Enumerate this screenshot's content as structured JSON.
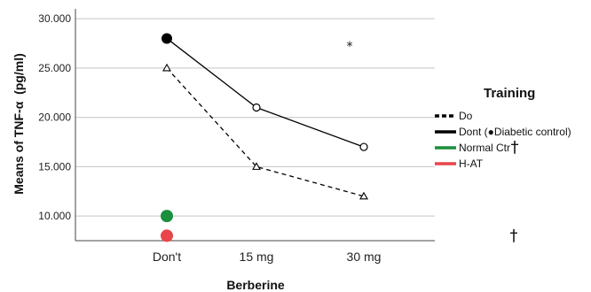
{
  "chart_data": {
    "type": "line",
    "xlabel": "Berberine",
    "ylabel": "Means of TNF-α  (pg/ml)",
    "categories": [
      "Don't",
      "15 mg",
      "30 mg"
    ],
    "ylim": [
      7500,
      31000
    ],
    "y_ticks": [
      "10.000",
      "15.000",
      "20.000",
      "25.000",
      "30.000"
    ],
    "y_tick_values": [
      10000,
      15000,
      20000,
      25000,
      30000
    ],
    "grid": "horizontal",
    "legend_position": "right",
    "legend_title": "Training",
    "series": [
      {
        "name": "Do",
        "values": [
          25000,
          15000,
          12000
        ],
        "color": "#000000",
        "style": "dashed",
        "marker": "triangle"
      },
      {
        "name": "Dont (●Diabetic control)",
        "values": [
          28000,
          21000,
          17000
        ],
        "color": "#000000",
        "style": "solid",
        "marker": "circle"
      },
      {
        "name": "Normal Ctr",
        "values": [
          10000,
          null,
          null
        ],
        "color": "#1a8f3c",
        "style": "point",
        "marker": "filled-circle"
      },
      {
        "name": "H-AT",
        "values": [
          8000,
          null,
          null
        ],
        "color": "#e8444a",
        "style": "point",
        "marker": "filled-circle"
      }
    ],
    "highlight_point": {
      "series": "Dont (●Diabetic control)",
      "category": "Don't",
      "value": 28000,
      "color": "#000000"
    },
    "annotations": [
      {
        "text": "*",
        "category": "30 mg",
        "value": 27500
      },
      {
        "text": "†",
        "placement": "legend-Normal Ctr"
      },
      {
        "text": "†",
        "category": "after-30 mg",
        "value": 7800
      }
    ]
  }
}
